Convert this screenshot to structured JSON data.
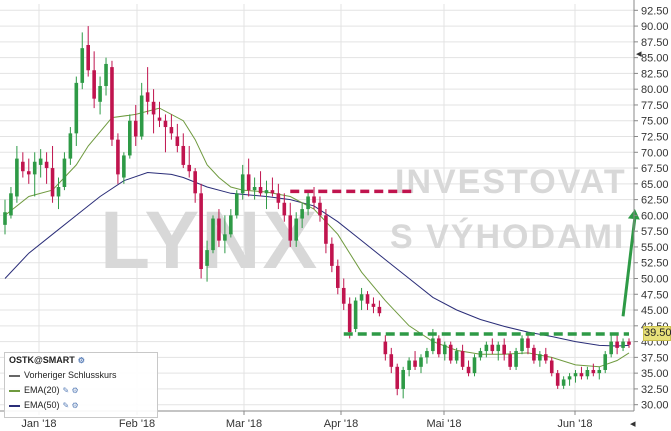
{
  "chart_data": {
    "type": "candlestick",
    "ticker": "OSTK@SMART",
    "x_tick_labels": [
      "Jan '18",
      "Feb '18",
      "Mar '18",
      "Apr '18",
      "Mai '18",
      "Jun '18"
    ],
    "y_tick_labels": [
      "92.50",
      "90.00",
      "87.50",
      "85.00",
      "82.50",
      "80.00",
      "77.50",
      "75.00",
      "72.50",
      "70.00",
      "67.50",
      "65.00",
      "62.50",
      "60.00",
      "57.50",
      "55.00",
      "52.50",
      "50.00",
      "47.50",
      "45.00",
      "42.50",
      "40.00",
      "37.50",
      "35.00",
      "32.50",
      "30.00"
    ],
    "ylim": [
      29,
      93.5
    ],
    "grid": true,
    "y_axis_position": "right",
    "last_price": "39.50",
    "last_price_color": "#e8e07a",
    "watermark": {
      "line1": "LYNX",
      "line2": "INVESTOVAT",
      "line3": "S VÝHODAMI"
    },
    "colors": {
      "up": "#2e9a46",
      "down": "#c0144e",
      "ema20": "#6f9a3f",
      "ema50": "#2a2d78",
      "resistance": "#c0144e",
      "support": "#2e9a46",
      "arrow": "#2e9a46"
    },
    "legend": {
      "title": "OSTK@SMART",
      "items": [
        {
          "label": "Vorheriger Schlusskurs",
          "style": "dashed",
          "color": "#666666"
        },
        {
          "label": "EMA(20)",
          "style": "solid",
          "color": "#6f9a3f"
        },
        {
          "label": "EMA(50)",
          "style": "solid",
          "color": "#2a2d78"
        }
      ]
    },
    "annotations": [
      {
        "type": "hline",
        "name": "resistance",
        "y": 63.8,
        "x_from": 48,
        "x_to": 69,
        "color": "#c0144e",
        "dashed": true
      },
      {
        "type": "hline",
        "name": "support",
        "y": 41.2,
        "x_from": 57,
        "x_to": 105,
        "color": "#2e9a46",
        "dashed": true
      },
      {
        "type": "arrow",
        "name": "target-arrow",
        "x_from": 104,
        "y_from": 44,
        "x_to": 106,
        "y_to": 61,
        "color": "#2e9a46"
      }
    ],
    "series_x_count": 106,
    "candles": [
      {
        "t": 0,
        "o": 58.5,
        "h": 62.5,
        "l": 57,
        "c": 60.5
      },
      {
        "t": 1,
        "o": 60,
        "h": 64.5,
        "l": 59.5,
        "c": 63.5
      },
      {
        "t": 2,
        "o": 63,
        "h": 71,
        "l": 62,
        "c": 69
      },
      {
        "t": 3,
        "o": 68.5,
        "h": 70,
        "l": 66,
        "c": 67
      },
      {
        "t": 4,
        "o": 67,
        "h": 69,
        "l": 65,
        "c": 66.5
      },
      {
        "t": 5,
        "o": 66.5,
        "h": 70,
        "l": 63,
        "c": 68.5
      },
      {
        "t": 6,
        "o": 68,
        "h": 70.5,
        "l": 66,
        "c": 69
      },
      {
        "t": 7,
        "o": 68.5,
        "h": 70,
        "l": 65,
        "c": 67.5
      },
      {
        "t": 8,
        "o": 67.5,
        "h": 71,
        "l": 62,
        "c": 63
      },
      {
        "t": 9,
        "o": 63,
        "h": 66,
        "l": 61,
        "c": 64.5
      },
      {
        "t": 10,
        "o": 64.5,
        "h": 70,
        "l": 64,
        "c": 69
      },
      {
        "t": 11,
        "o": 69,
        "h": 74,
        "l": 68,
        "c": 73
      },
      {
        "t": 12,
        "o": 73,
        "h": 82,
        "l": 71,
        "c": 81
      },
      {
        "t": 13,
        "o": 81,
        "h": 89,
        "l": 80,
        "c": 86.5
      },
      {
        "t": 14,
        "o": 87,
        "h": 90,
        "l": 82,
        "c": 83
      },
      {
        "t": 15,
        "o": 83,
        "h": 86,
        "l": 77,
        "c": 78.5
      },
      {
        "t": 16,
        "o": 78,
        "h": 82,
        "l": 76,
        "c": 80.5
      },
      {
        "t": 17,
        "o": 80.5,
        "h": 85,
        "l": 79,
        "c": 84
      },
      {
        "t": 18,
        "o": 83.5,
        "h": 84.5,
        "l": 71,
        "c": 72
      },
      {
        "t": 19,
        "o": 72,
        "h": 73,
        "l": 65,
        "c": 66.5
      },
      {
        "t": 20,
        "o": 66,
        "h": 70,
        "l": 65,
        "c": 69.5
      },
      {
        "t": 21,
        "o": 69.5,
        "h": 76,
        "l": 69,
        "c": 75
      },
      {
        "t": 22,
        "o": 75,
        "h": 77.5,
        "l": 71,
        "c": 72.5
      },
      {
        "t": 23,
        "o": 72.5,
        "h": 81,
        "l": 72,
        "c": 79
      },
      {
        "t": 24,
        "o": 79.5,
        "h": 83.5,
        "l": 76,
        "c": 78
      },
      {
        "t": 25,
        "o": 78,
        "h": 80,
        "l": 73,
        "c": 76
      },
      {
        "t": 26,
        "o": 75.5,
        "h": 78,
        "l": 74,
        "c": 75
      },
      {
        "t": 27,
        "o": 75,
        "h": 76,
        "l": 70,
        "c": 74
      },
      {
        "t": 28,
        "o": 74,
        "h": 76,
        "l": 72,
        "c": 73
      },
      {
        "t": 29,
        "o": 72.5,
        "h": 74.5,
        "l": 70,
        "c": 71
      },
      {
        "t": 30,
        "o": 71,
        "h": 73,
        "l": 67.5,
        "c": 68
      },
      {
        "t": 31,
        "o": 68,
        "h": 71,
        "l": 66,
        "c": 67
      },
      {
        "t": 32,
        "o": 67,
        "h": 67.5,
        "l": 62,
        "c": 63.5
      },
      {
        "t": 33,
        "o": 63.5,
        "h": 65,
        "l": 50,
        "c": 51.5
      },
      {
        "t": 34,
        "o": 52,
        "h": 56,
        "l": 49.5,
        "c": 54.5
      },
      {
        "t": 35,
        "o": 54.5,
        "h": 60,
        "l": 54,
        "c": 59.5
      },
      {
        "t": 36,
        "o": 59.5,
        "h": 61,
        "l": 55,
        "c": 56
      },
      {
        "t": 37,
        "o": 56,
        "h": 60,
        "l": 54,
        "c": 57
      },
      {
        "t": 38,
        "o": 57,
        "h": 61,
        "l": 56.5,
        "c": 60
      },
      {
        "t": 39,
        "o": 60,
        "h": 64,
        "l": 59.5,
        "c": 63.5
      },
      {
        "t": 40,
        "o": 63.5,
        "h": 68,
        "l": 62.5,
        "c": 66.5
      },
      {
        "t": 41,
        "o": 66.5,
        "h": 69,
        "l": 63,
        "c": 64
      },
      {
        "t": 42,
        "o": 64,
        "h": 66,
        "l": 62.5,
        "c": 64.5
      },
      {
        "t": 43,
        "o": 64.5,
        "h": 67,
        "l": 63,
        "c": 63.5
      },
      {
        "t": 44,
        "o": 63.5,
        "h": 65.5,
        "l": 61,
        "c": 64
      },
      {
        "t": 45,
        "o": 64,
        "h": 66,
        "l": 63,
        "c": 63.5
      },
      {
        "t": 46,
        "o": 63.5,
        "h": 65,
        "l": 61,
        "c": 62
      },
      {
        "t": 47,
        "o": 62,
        "h": 63.5,
        "l": 59,
        "c": 60
      },
      {
        "t": 48,
        "o": 60,
        "h": 62,
        "l": 55,
        "c": 56
      },
      {
        "t": 49,
        "o": 56,
        "h": 60.5,
        "l": 55,
        "c": 59.5
      },
      {
        "t": 50,
        "o": 59.5,
        "h": 62,
        "l": 58,
        "c": 61
      },
      {
        "t": 51,
        "o": 61,
        "h": 64,
        "l": 60,
        "c": 63
      },
      {
        "t": 52,
        "o": 63,
        "h": 64.5,
        "l": 61,
        "c": 62
      },
      {
        "t": 53,
        "o": 62,
        "h": 63,
        "l": 59,
        "c": 60
      },
      {
        "t": 54,
        "o": 60,
        "h": 61,
        "l": 54,
        "c": 55.5
      },
      {
        "t": 55,
        "o": 55.5,
        "h": 56.5,
        "l": 51,
        "c": 52
      },
      {
        "t": 56,
        "o": 52,
        "h": 53,
        "l": 47.5,
        "c": 48.5
      },
      {
        "t": 57,
        "o": 48.5,
        "h": 50,
        "l": 45,
        "c": 46
      },
      {
        "t": 58,
        "o": 46,
        "h": 47,
        "l": 40.5,
        "c": 41.5
      },
      {
        "t": 59,
        "o": 42,
        "h": 47,
        "l": 41.5,
        "c": 46.5
      },
      {
        "t": 60,
        "o": 46.5,
        "h": 48.5,
        "l": 45,
        "c": 47.5
      },
      {
        "t": 61,
        "o": 47.5,
        "h": 48,
        "l": 45,
        "c": 46
      },
      {
        "t": 62,
        "o": 46,
        "h": 47,
        "l": 44.5,
        "c": 45.5
      },
      {
        "t": 63,
        "o": 45.5,
        "h": 46.5,
        "l": 44,
        "c": 44.5
      },
      {
        "t": 64,
        "o": 40,
        "h": 41,
        "l": 37,
        "c": 38
      },
      {
        "t": 65,
        "o": 38,
        "h": 39,
        "l": 35,
        "c": 36
      },
      {
        "t": 66,
        "o": 36,
        "h": 36.5,
        "l": 31.5,
        "c": 32.5
      },
      {
        "t": 67,
        "o": 32.5,
        "h": 36,
        "l": 31,
        "c": 35.5
      },
      {
        "t": 68,
        "o": 35.5,
        "h": 37.5,
        "l": 34.5,
        "c": 37
      },
      {
        "t": 69,
        "o": 37,
        "h": 38.5,
        "l": 35.5,
        "c": 36
      },
      {
        "t": 70,
        "o": 36,
        "h": 38,
        "l": 35,
        "c": 37.5
      },
      {
        "t": 71,
        "o": 37.5,
        "h": 39,
        "l": 36.5,
        "c": 38.5
      },
      {
        "t": 72,
        "o": 38.5,
        "h": 42,
        "l": 38,
        "c": 40.5
      },
      {
        "t": 73,
        "o": 40.5,
        "h": 41,
        "l": 37.5,
        "c": 38
      },
      {
        "t": 74,
        "o": 38,
        "h": 40,
        "l": 37,
        "c": 39.5
      },
      {
        "t": 75,
        "o": 39.5,
        "h": 40,
        "l": 36.5,
        "c": 37
      },
      {
        "t": 76,
        "o": 37,
        "h": 39,
        "l": 36.5,
        "c": 38.5
      },
      {
        "t": 77,
        "o": 38.5,
        "h": 39.5,
        "l": 35.5,
        "c": 36
      },
      {
        "t": 78,
        "o": 36,
        "h": 37,
        "l": 34.5,
        "c": 35
      },
      {
        "t": 79,
        "o": 35,
        "h": 38,
        "l": 34.5,
        "c": 37.5
      },
      {
        "t": 80,
        "o": 37.5,
        "h": 39,
        "l": 37,
        "c": 38.5
      },
      {
        "t": 81,
        "o": 38.5,
        "h": 40,
        "l": 37.5,
        "c": 39.5
      },
      {
        "t": 82,
        "o": 39.5,
        "h": 40.5,
        "l": 38,
        "c": 38.5
      },
      {
        "t": 83,
        "o": 38.5,
        "h": 40,
        "l": 37,
        "c": 39.5
      },
      {
        "t": 84,
        "o": 39.5,
        "h": 40.5,
        "l": 37,
        "c": 38
      },
      {
        "t": 85,
        "o": 38,
        "h": 38.5,
        "l": 35.5,
        "c": 36
      },
      {
        "t": 86,
        "o": 36,
        "h": 39,
        "l": 35.5,
        "c": 38.5
      },
      {
        "t": 87,
        "o": 38.5,
        "h": 41,
        "l": 38,
        "c": 40.5
      },
      {
        "t": 88,
        "o": 40.5,
        "h": 41,
        "l": 38,
        "c": 39
      },
      {
        "t": 89,
        "o": 39,
        "h": 39.5,
        "l": 36.5,
        "c": 37
      },
      {
        "t": 90,
        "o": 37,
        "h": 38.5,
        "l": 36,
        "c": 38
      },
      {
        "t": 91,
        "o": 38,
        "h": 39,
        "l": 36.5,
        "c": 37
      },
      {
        "t": 92,
        "o": 37,
        "h": 37.5,
        "l": 34.5,
        "c": 35
      },
      {
        "t": 93,
        "o": 35,
        "h": 35.5,
        "l": 32.5,
        "c": 33
      },
      {
        "t": 94,
        "o": 33,
        "h": 34.5,
        "l": 32.5,
        "c": 34
      },
      {
        "t": 95,
        "o": 34,
        "h": 35,
        "l": 33,
        "c": 34.5
      },
      {
        "t": 96,
        "o": 34.5,
        "h": 35.5,
        "l": 33.5,
        "c": 35
      },
      {
        "t": 97,
        "o": 35,
        "h": 36,
        "l": 34,
        "c": 34.5
      },
      {
        "t": 98,
        "o": 34.5,
        "h": 36,
        "l": 34,
        "c": 35.5
      },
      {
        "t": 99,
        "o": 35.5,
        "h": 36.5,
        "l": 34.5,
        "c": 35
      },
      {
        "t": 100,
        "o": 35,
        "h": 36,
        "l": 34,
        "c": 35.5
      },
      {
        "t": 101,
        "o": 35.5,
        "h": 38.5,
        "l": 35,
        "c": 38
      },
      {
        "t": 102,
        "o": 38,
        "h": 41,
        "l": 37.5,
        "c": 40
      },
      {
        "t": 103,
        "o": 40,
        "h": 41,
        "l": 38,
        "c": 39
      },
      {
        "t": 104,
        "o": 39,
        "h": 40.5,
        "l": 38.5,
        "c": 40
      },
      {
        "t": 105,
        "o": 40,
        "h": 40.5,
        "l": 39,
        "c": 39.5
      }
    ],
    "ema20": [
      [
        0,
        60
      ],
      [
        4,
        63
      ],
      [
        8,
        64
      ],
      [
        12,
        68
      ],
      [
        14,
        71
      ],
      [
        18,
        75.5
      ],
      [
        22,
        76
      ],
      [
        26,
        77
      ],
      [
        30,
        75
      ],
      [
        32,
        72
      ],
      [
        34,
        68
      ],
      [
        36,
        66
      ],
      [
        38,
        64.5
      ],
      [
        40,
        64
      ],
      [
        44,
        63.7
      ],
      [
        48,
        63
      ],
      [
        52,
        61
      ],
      [
        56,
        57
      ],
      [
        60,
        51
      ],
      [
        64,
        46.5
      ],
      [
        68,
        42.5
      ],
      [
        72,
        40
      ],
      [
        76,
        38.6
      ],
      [
        80,
        38
      ],
      [
        84,
        38
      ],
      [
        88,
        38.2
      ],
      [
        92,
        37.5
      ],
      [
        96,
        36.3
      ],
      [
        100,
        36
      ],
      [
        103,
        37
      ],
      [
        105,
        38.2
      ]
    ],
    "ema50": [
      [
        0,
        50
      ],
      [
        4,
        54
      ],
      [
        8,
        57
      ],
      [
        12,
        60
      ],
      [
        16,
        63
      ],
      [
        20,
        65.5
      ],
      [
        24,
        66.8
      ],
      [
        28,
        66.5
      ],
      [
        30,
        66
      ],
      [
        34,
        64.5
      ],
      [
        38,
        63.5
      ],
      [
        44,
        63
      ],
      [
        48,
        62.5
      ],
      [
        52,
        61.5
      ],
      [
        56,
        59
      ],
      [
        60,
        56
      ],
      [
        64,
        53
      ],
      [
        68,
        50
      ],
      [
        72,
        47
      ],
      [
        76,
        45
      ],
      [
        80,
        43.5
      ],
      [
        84,
        42.4
      ],
      [
        88,
        41.5
      ],
      [
        92,
        40.8
      ],
      [
        96,
        40
      ],
      [
        100,
        39.4
      ],
      [
        103,
        39.3
      ],
      [
        105,
        39.4
      ]
    ]
  }
}
